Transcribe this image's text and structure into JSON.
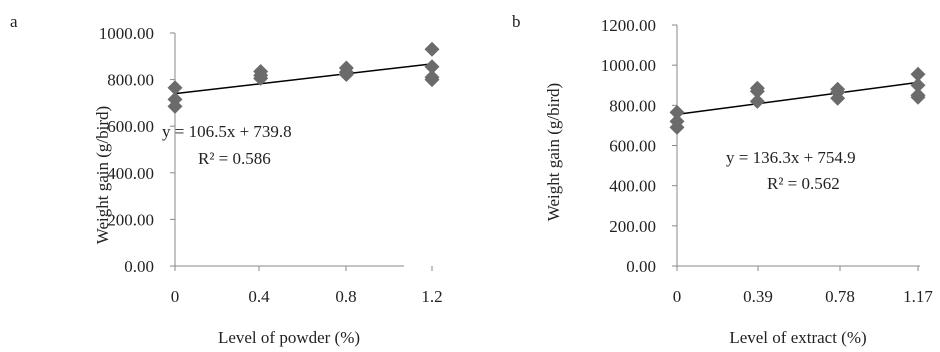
{
  "chart_data": [
    {
      "type": "scatter",
      "panel_label": "a",
      "xlabel": "Level of powder (%)",
      "ylabel": "Weight gain (g/bird)",
      "x_ticks": [
        0,
        0.4,
        0.8,
        1.2
      ],
      "x_tick_labels": [
        "0",
        "0.4",
        "0.8",
        "1.2"
      ],
      "ylim": [
        0,
        1000
      ],
      "y_ticks": [
        0,
        200,
        400,
        600,
        800,
        1000
      ],
      "y_tick_labels": [
        "0.00",
        "200.00",
        "400.00",
        "600.00",
        "800.00",
        "1000.00"
      ],
      "points": [
        {
          "x": 0,
          "y": 765
        },
        {
          "x": 0,
          "y": 715
        },
        {
          "x": 0,
          "y": 685
        },
        {
          "x": 0.4,
          "y": 835
        },
        {
          "x": 0.4,
          "y": 818
        },
        {
          "x": 0.4,
          "y": 805
        },
        {
          "x": 0.8,
          "y": 850
        },
        {
          "x": 0.8,
          "y": 832
        },
        {
          "x": 0.8,
          "y": 822
        },
        {
          "x": 1.2,
          "y": 930
        },
        {
          "x": 1.2,
          "y": 855
        },
        {
          "x": 1.2,
          "y": 810
        },
        {
          "x": 1.2,
          "y": 800
        }
      ],
      "trendline": {
        "slope": 106.5,
        "intercept": 739.8
      },
      "equation": "y = 106.5x + 739.8",
      "r_squared": "R² = 0.586",
      "grid": false,
      "marker_color": "#6b6b6b",
      "line_color": "#000000"
    },
    {
      "type": "scatter",
      "panel_label": "b",
      "xlabel": "Level of extract (%)",
      "ylabel": "Weight gain (g/bird)",
      "x_ticks": [
        0,
        0.39,
        0.78,
        1.17
      ],
      "x_tick_labels": [
        "0",
        "0.39",
        "0.78",
        "1.17"
      ],
      "ylim": [
        0,
        1200
      ],
      "y_ticks": [
        0,
        200,
        400,
        600,
        800,
        1000,
        1200
      ],
      "y_tick_labels": [
        "0.00",
        "200.00",
        "400.00",
        "600.00",
        "800.00",
        "1000.00",
        "1200.00"
      ],
      "points": [
        {
          "x": 0,
          "y": 765
        },
        {
          "x": 0,
          "y": 720
        },
        {
          "x": 0,
          "y": 690
        },
        {
          "x": 0.39,
          "y": 885
        },
        {
          "x": 0.39,
          "y": 870
        },
        {
          "x": 0.39,
          "y": 820
        },
        {
          "x": 0.78,
          "y": 880
        },
        {
          "x": 0.78,
          "y": 865
        },
        {
          "x": 0.78,
          "y": 835
        },
        {
          "x": 1.17,
          "y": 955
        },
        {
          "x": 1.17,
          "y": 900
        },
        {
          "x": 1.17,
          "y": 850
        },
        {
          "x": 1.17,
          "y": 840
        }
      ],
      "trendline": {
        "slope": 136.3,
        "intercept": 754.9
      },
      "equation": "y = 136.3x + 754.9",
      "r_squared": "R² = 0.562",
      "grid": false,
      "marker_color": "#6b6b6b",
      "line_color": "#000000"
    }
  ]
}
